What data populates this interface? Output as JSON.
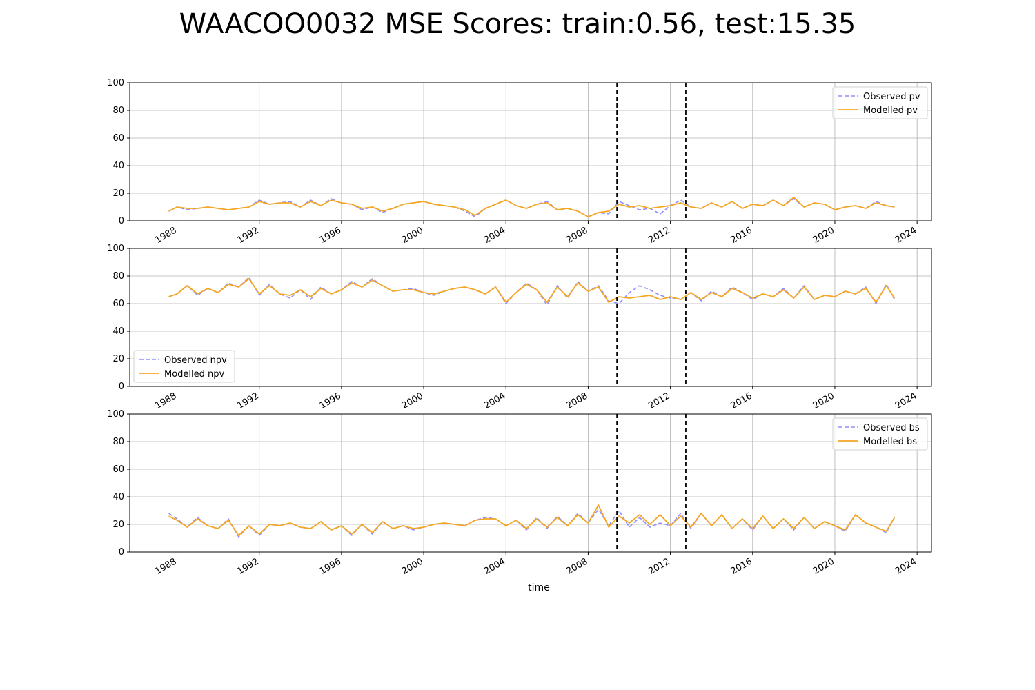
{
  "title": "WAACOO0032 MSE Scores: train:0.56, test:15.35",
  "colors": {
    "observed": "#8f8fff",
    "modelled": "#f5a623",
    "grid": "#b0b0b0",
    "split_line": "#000000"
  },
  "chart_data": [
    {
      "type": "line",
      "ylim": [
        0,
        100
      ],
      "yticks": [
        0,
        20,
        40,
        60,
        80,
        100
      ],
      "xlim": [
        1985.7,
        2024.7
      ],
      "xticks": [
        1988,
        1992,
        1996,
        2000,
        2004,
        2008,
        2012,
        2016,
        2020,
        2024
      ],
      "xlabel": "",
      "grid": true,
      "legend_position": "upper right",
      "split_lines": [
        2009.4,
        2012.75
      ],
      "series": [
        {
          "name": "Observed pv",
          "style": "dashed",
          "x": [
            1987.6,
            1988.0,
            1988.5,
            1989.0,
            1989.5,
            1990.0,
            1990.5,
            1991.0,
            1991.5,
            1992.0,
            1992.5,
            1993.0,
            1993.5,
            1994.0,
            1994.5,
            1995.0,
            1995.5,
            1996.0,
            1996.5,
            1997.0,
            1997.5,
            1998.0,
            1998.5,
            1999.0,
            1999.5,
            2000.0,
            2000.5,
            2001.0,
            2001.5,
            2002.0,
            2002.5,
            2003.0,
            2003.5,
            2004.0,
            2004.5,
            2005.0,
            2005.5,
            2006.0,
            2006.5,
            2007.0,
            2007.5,
            2008.0,
            2008.5,
            2009.0,
            2009.5,
            2010.0,
            2010.5,
            2011.0,
            2011.5,
            2012.0,
            2012.5,
            2013.0,
            2013.5,
            2014.0,
            2014.5,
            2015.0,
            2015.5,
            2016.0,
            2016.5,
            2017.0,
            2017.5,
            2018.0,
            2018.5,
            2019.0,
            2019.5,
            2020.0,
            2020.5,
            2021.0,
            2021.5,
            2022.0,
            2022.5,
            2022.9
          ],
          "y": [
            7,
            10,
            8,
            9,
            10,
            9,
            8,
            9,
            10,
            15,
            12,
            13,
            14,
            10,
            15,
            11,
            16,
            13,
            12,
            8,
            10,
            6,
            9,
            12,
            13,
            14,
            12,
            11,
            10,
            7,
            3,
            9,
            12,
            15,
            11,
            9,
            12,
            14,
            8,
            9,
            7,
            3,
            6,
            5,
            14,
            11,
            8,
            9,
            5,
            11,
            15,
            10,
            9,
            13,
            10,
            14,
            9,
            12,
            11,
            15,
            11,
            16,
            10,
            13,
            12,
            8,
            10,
            11,
            9,
            14,
            11,
            10
          ]
        },
        {
          "name": "Modelled pv",
          "style": "solid",
          "x": [
            1987.6,
            1988.0,
            1988.5,
            1989.0,
            1989.5,
            1990.0,
            1990.5,
            1991.0,
            1991.5,
            1992.0,
            1992.5,
            1993.0,
            1993.5,
            1994.0,
            1994.5,
            1995.0,
            1995.5,
            1996.0,
            1996.5,
            1997.0,
            1997.5,
            1998.0,
            1998.5,
            1999.0,
            1999.5,
            2000.0,
            2000.5,
            2001.0,
            2001.5,
            2002.0,
            2002.5,
            2003.0,
            2003.5,
            2004.0,
            2004.5,
            2005.0,
            2005.5,
            2006.0,
            2006.5,
            2007.0,
            2007.5,
            2008.0,
            2008.5,
            2009.0,
            2009.5,
            2010.0,
            2010.5,
            2011.0,
            2011.5,
            2012.0,
            2012.5,
            2013.0,
            2013.5,
            2014.0,
            2014.5,
            2015.0,
            2015.5,
            2016.0,
            2016.5,
            2017.0,
            2017.5,
            2018.0,
            2018.5,
            2019.0,
            2019.5,
            2020.0,
            2020.5,
            2021.0,
            2021.5,
            2022.0,
            2022.5,
            2022.9
          ],
          "y": [
            7,
            10,
            9,
            9,
            10,
            9,
            8,
            9,
            10,
            14,
            12,
            13,
            13,
            10,
            14,
            11,
            15,
            13,
            12,
            9,
            10,
            7,
            9,
            12,
            13,
            14,
            12,
            11,
            10,
            8,
            4,
            9,
            12,
            15,
            11,
            9,
            12,
            13,
            8,
            9,
            7,
            3,
            6,
            7,
            12,
            10,
            11,
            9,
            10,
            11,
            13,
            10,
            9,
            13,
            10,
            14,
            9,
            12,
            11,
            15,
            11,
            17,
            10,
            13,
            12,
            8,
            10,
            11,
            9,
            13,
            11,
            10
          ]
        }
      ]
    },
    {
      "type": "line",
      "ylim": [
        0,
        100
      ],
      "yticks": [
        0,
        20,
        40,
        60,
        80,
        100
      ],
      "xlim": [
        1985.7,
        2024.7
      ],
      "xticks": [
        1988,
        1992,
        1996,
        2000,
        2004,
        2008,
        2012,
        2016,
        2020,
        2024
      ],
      "xlabel": "",
      "grid": true,
      "legend_position": "lower left",
      "split_lines": [
        2009.4,
        2012.75
      ],
      "series": [
        {
          "name": "Observed npv",
          "style": "dashed",
          "x": [
            1987.6,
            1988.0,
            1988.5,
            1989.0,
            1989.5,
            1990.0,
            1990.5,
            1991.0,
            1991.5,
            1992.0,
            1992.5,
            1993.0,
            1993.5,
            1994.0,
            1994.5,
            1995.0,
            1995.5,
            1996.0,
            1996.5,
            1997.0,
            1997.5,
            1998.0,
            1998.5,
            1999.0,
            1999.5,
            2000.0,
            2000.5,
            2001.0,
            2001.5,
            2002.0,
            2002.5,
            2003.0,
            2003.5,
            2004.0,
            2004.5,
            2005.0,
            2005.5,
            2006.0,
            2006.5,
            2007.0,
            2007.5,
            2008.0,
            2008.5,
            2009.0,
            2009.5,
            2010.0,
            2010.5,
            2011.0,
            2011.5,
            2012.0,
            2012.5,
            2013.0,
            2013.5,
            2014.0,
            2014.5,
            2015.0,
            2015.5,
            2016.0,
            2016.5,
            2017.0,
            2017.5,
            2018.0,
            2018.5,
            2019.0,
            2019.5,
            2020.0,
            2020.5,
            2021.0,
            2021.5,
            2022.0,
            2022.5,
            2022.9
          ],
          "y": [
            65,
            67,
            73,
            66,
            71,
            68,
            75,
            72,
            79,
            66,
            74,
            67,
            64,
            70,
            63,
            72,
            67,
            70,
            76,
            72,
            78,
            73,
            69,
            70,
            71,
            68,
            66,
            69,
            71,
            72,
            70,
            67,
            72,
            60,
            68,
            75,
            70,
            59,
            73,
            64,
            76,
            69,
            73,
            62,
            60,
            68,
            73,
            70,
            66,
            64,
            63,
            68,
            62,
            69,
            65,
            72,
            68,
            63,
            67,
            65,
            71,
            64,
            73,
            63,
            66,
            65,
            69,
            67,
            72,
            60,
            74,
            63
          ]
        },
        {
          "name": "Modelled npv",
          "style": "solid",
          "x": [
            1987.6,
            1988.0,
            1988.5,
            1989.0,
            1989.5,
            1990.0,
            1990.5,
            1991.0,
            1991.5,
            1992.0,
            1992.5,
            1993.0,
            1993.5,
            1994.0,
            1994.5,
            1995.0,
            1995.5,
            1996.0,
            1996.5,
            1997.0,
            1997.5,
            1998.0,
            1998.5,
            1999.0,
            1999.5,
            2000.0,
            2000.5,
            2001.0,
            2001.5,
            2002.0,
            2002.5,
            2003.0,
            2003.5,
            2004.0,
            2004.5,
            2005.0,
            2005.5,
            2006.0,
            2006.5,
            2007.0,
            2007.5,
            2008.0,
            2008.5,
            2009.0,
            2009.5,
            2010.0,
            2010.5,
            2011.0,
            2011.5,
            2012.0,
            2012.5,
            2013.0,
            2013.5,
            2014.0,
            2014.5,
            2015.0,
            2015.5,
            2016.0,
            2016.5,
            2017.0,
            2017.5,
            2018.0,
            2018.5,
            2019.0,
            2019.5,
            2020.0,
            2020.5,
            2021.0,
            2021.5,
            2022.0,
            2022.5,
            2022.9
          ],
          "y": [
            65,
            67,
            73,
            67,
            71,
            68,
            74,
            72,
            78,
            67,
            73,
            67,
            66,
            70,
            65,
            71,
            67,
            70,
            75,
            72,
            77,
            73,
            69,
            70,
            70,
            68,
            67,
            69,
            71,
            72,
            70,
            67,
            72,
            61,
            68,
            74,
            70,
            61,
            72,
            65,
            75,
            69,
            72,
            61,
            65,
            64,
            65,
            66,
            63,
            65,
            63,
            68,
            63,
            68,
            65,
            71,
            68,
            64,
            67,
            65,
            70,
            64,
            72,
            63,
            66,
            65,
            69,
            67,
            71,
            61,
            73,
            64
          ]
        }
      ]
    },
    {
      "type": "line",
      "ylim": [
        0,
        100
      ],
      "yticks": [
        0,
        20,
        40,
        60,
        80,
        100
      ],
      "xlim": [
        1985.7,
        2024.7
      ],
      "xticks": [
        1988,
        1992,
        1996,
        2000,
        2004,
        2008,
        2012,
        2016,
        2020,
        2024
      ],
      "xlabel": "time",
      "grid": true,
      "legend_position": "upper right",
      "split_lines": [
        2009.4,
        2012.75
      ],
      "series": [
        {
          "name": "Observed bs",
          "style": "dashed",
          "x": [
            1987.6,
            1988.0,
            1988.5,
            1989.0,
            1989.5,
            1990.0,
            1990.5,
            1991.0,
            1991.5,
            1992.0,
            1992.5,
            1993.0,
            1993.5,
            1994.0,
            1994.5,
            1995.0,
            1995.5,
            1996.0,
            1996.5,
            1997.0,
            1997.5,
            1998.0,
            1998.5,
            1999.0,
            1999.5,
            2000.0,
            2000.5,
            2001.0,
            2001.5,
            2002.0,
            2002.5,
            2003.0,
            2003.5,
            2004.0,
            2004.5,
            2005.0,
            2005.5,
            2006.0,
            2006.5,
            2007.0,
            2007.5,
            2008.0,
            2008.5,
            2009.0,
            2009.5,
            2010.0,
            2010.5,
            2011.0,
            2011.5,
            2012.0,
            2012.5,
            2013.0,
            2013.5,
            2014.0,
            2014.5,
            2015.0,
            2015.5,
            2016.0,
            2016.5,
            2017.0,
            2017.5,
            2018.0,
            2018.5,
            2019.0,
            2019.5,
            2020.0,
            2020.5,
            2021.0,
            2021.5,
            2022.0,
            2022.5,
            2022.9
          ],
          "y": [
            28,
            24,
            18,
            25,
            19,
            17,
            24,
            11,
            19,
            12,
            20,
            19,
            21,
            18,
            17,
            22,
            16,
            19,
            12,
            20,
            13,
            22,
            17,
            19,
            16,
            18,
            20,
            21,
            20,
            19,
            23,
            25,
            24,
            19,
            23,
            16,
            25,
            17,
            26,
            19,
            28,
            21,
            31,
            19,
            30,
            18,
            25,
            18,
            21,
            19,
            28,
            17,
            28,
            19,
            27,
            17,
            24,
            16,
            26,
            17,
            24,
            16,
            25,
            17,
            22,
            19,
            15,
            27,
            21,
            18,
            14,
            25
          ]
        },
        {
          "name": "Modelled bs",
          "style": "solid",
          "x": [
            1987.6,
            1988.0,
            1988.5,
            1989.0,
            1989.5,
            1990.0,
            1990.5,
            1991.0,
            1991.5,
            1992.0,
            1992.5,
            1993.0,
            1993.5,
            1994.0,
            1994.5,
            1995.0,
            1995.5,
            1996.0,
            1996.5,
            1997.0,
            1997.5,
            1998.0,
            1998.5,
            1999.0,
            1999.5,
            2000.0,
            2000.5,
            2001.0,
            2001.5,
            2002.0,
            2002.5,
            2003.0,
            2003.5,
            2004.0,
            2004.5,
            2005.0,
            2005.5,
            2006.0,
            2006.5,
            2007.0,
            2007.5,
            2008.0,
            2008.5,
            2009.0,
            2009.5,
            2010.0,
            2010.5,
            2011.0,
            2011.5,
            2012.0,
            2012.5,
            2013.0,
            2013.5,
            2014.0,
            2014.5,
            2015.0,
            2015.5,
            2016.0,
            2016.5,
            2017.0,
            2017.5,
            2018.0,
            2018.5,
            2019.0,
            2019.5,
            2020.0,
            2020.5,
            2021.0,
            2021.5,
            2022.0,
            2022.5,
            2022.9
          ],
          "y": [
            26,
            23,
            18,
            24,
            19,
            17,
            23,
            12,
            19,
            13,
            20,
            19,
            21,
            18,
            17,
            22,
            16,
            19,
            13,
            20,
            14,
            22,
            17,
            19,
            17,
            18,
            20,
            21,
            20,
            19,
            23,
            24,
            24,
            19,
            23,
            17,
            24,
            18,
            25,
            19,
            27,
            21,
            34,
            18,
            26,
            21,
            27,
            20,
            27,
            19,
            26,
            18,
            28,
            19,
            27,
            17,
            24,
            17,
            26,
            17,
            24,
            17,
            25,
            17,
            22,
            19,
            16,
            27,
            21,
            18,
            15,
            25
          ]
        }
      ]
    }
  ]
}
